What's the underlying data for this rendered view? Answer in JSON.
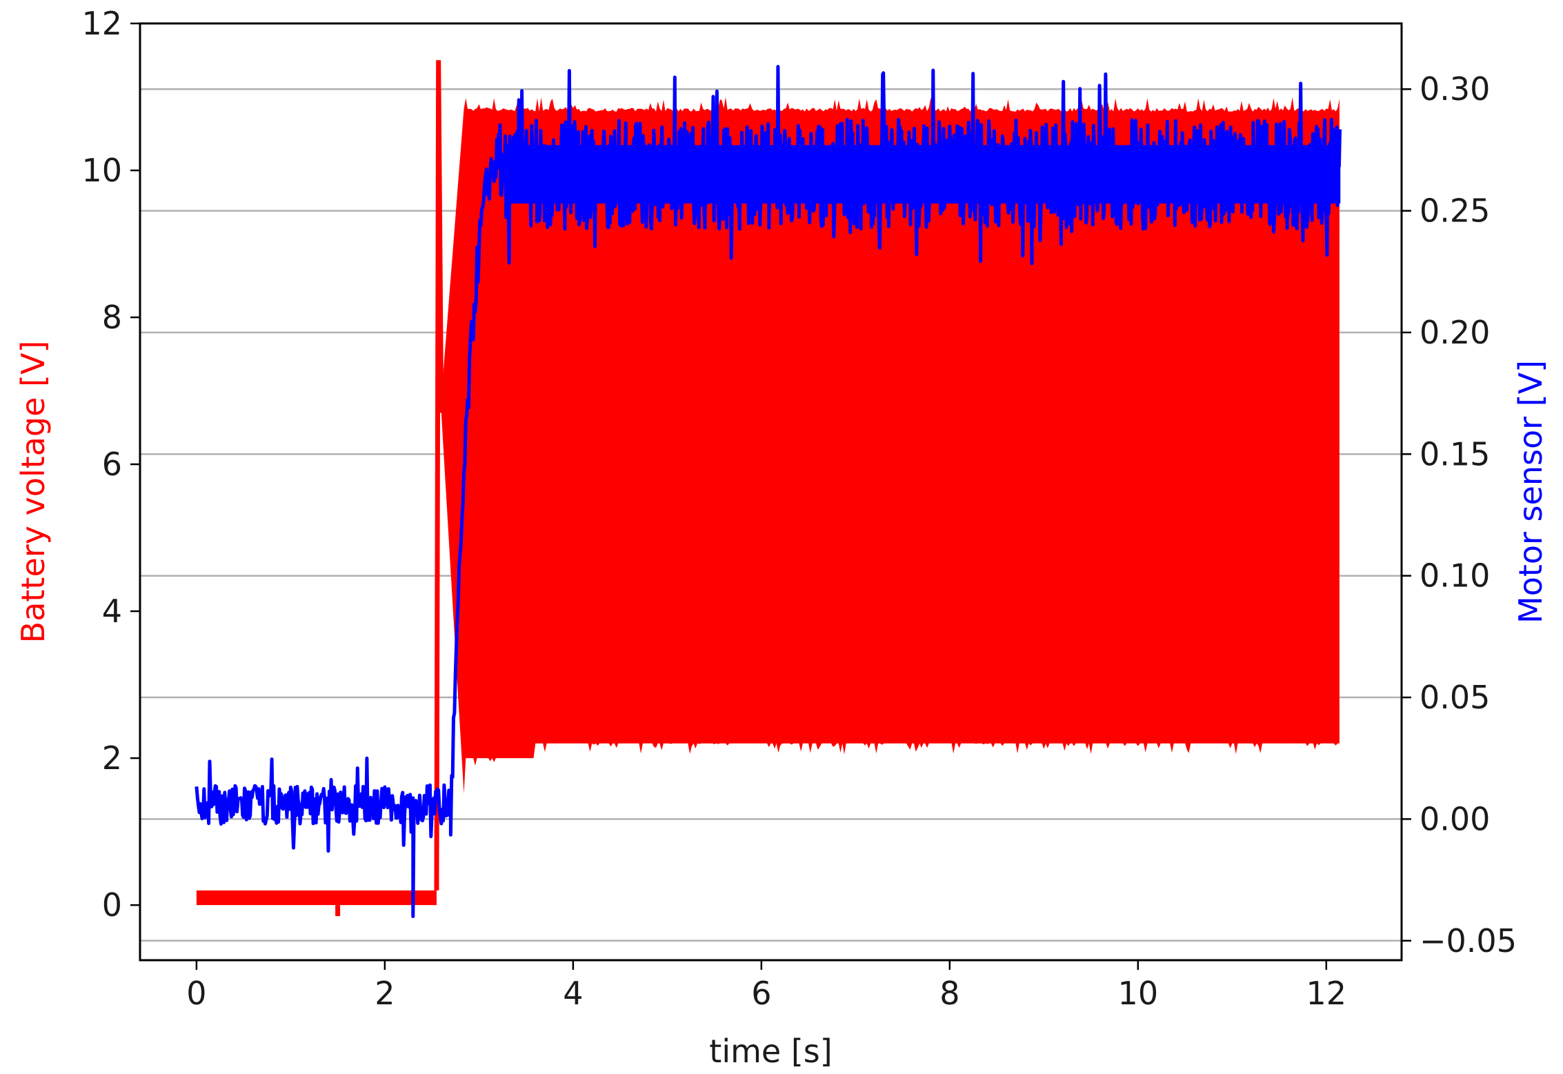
{
  "chart_data": {
    "type": "line",
    "title": "",
    "xlabel": "time [s]",
    "ylabel_left": "Battery voltage [V]",
    "ylabel_right": "Motor sensor [V]",
    "xlim": [
      -0.6,
      12.8
    ],
    "xticks": [
      0,
      2,
      4,
      6,
      8,
      10,
      12
    ],
    "ylim_left": [
      -0.75,
      12
    ],
    "yticks_left": [
      0,
      2,
      4,
      6,
      8,
      10,
      12
    ],
    "ylim_right": [
      -0.058,
      0.327
    ],
    "yticks_right": [
      "-0.05",
      "0.00",
      "0.05",
      "0.10",
      "0.15",
      "0.20",
      "0.25",
      "0.30"
    ],
    "grid": "horizontal lines at right-axis ticks",
    "colors": {
      "battery": "#ff0000",
      "motor": "#0000ff",
      "grid": "#b0b0b0",
      "axis": "#000000"
    },
    "series": [
      {
        "name": "Battery voltage [V]",
        "axis": "left",
        "color": "#ff0000",
        "segments": [
          {
            "t": [
              0.0,
              2.55
            ],
            "min": 0.0,
            "max": 0.2,
            "note_min_at": [
              1.5,
              -0.15
            ]
          },
          {
            "t": [
              2.55,
              2.6
            ],
            "spike_max": 11.5
          },
          {
            "t": [
              2.6,
              3.0
            ],
            "envelope_min_start": 6.7,
            "envelope_max_end": 10.8
          },
          {
            "t": [
              2.85,
              12.15
            ],
            "min": 2.2,
            "max": 10.8,
            "peak_max": 11.0,
            "oscillating": true
          }
        ]
      },
      {
        "name": "Motor sensor [V]",
        "axis": "right",
        "color": "#0000ff",
        "segments": [
          {
            "t": [
              0.0,
              2.7
            ],
            "min": -0.002,
            "max": 0.014,
            "dips_to": -0.04
          },
          {
            "t": [
              2.7,
              3.2
            ],
            "rise_from": 0.0,
            "rise_to": 0.27
          },
          {
            "t": [
              3.2,
              12.15
            ],
            "min": 0.245,
            "max": 0.295,
            "mean": 0.265,
            "peak": 0.31
          }
        ]
      }
    ]
  }
}
